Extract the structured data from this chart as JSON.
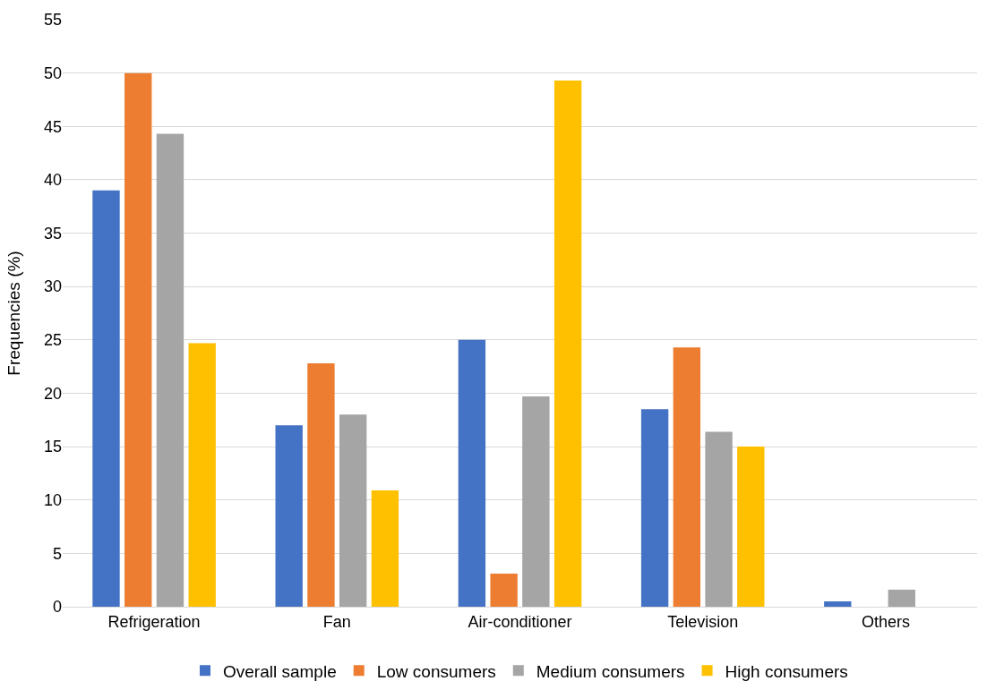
{
  "chart_data": {
    "type": "bar",
    "ylabel": "Frequencies (%)",
    "categories": [
      "Refrigeration",
      "Fan",
      "Air-conditioner",
      "Television",
      "Others"
    ],
    "series": [
      {
        "name": "Overall sample",
        "color": "#4472c4",
        "values": [
          39.0,
          17.0,
          25.0,
          18.5,
          0.5
        ]
      },
      {
        "name": "Low consumers",
        "color": "#ed7d31",
        "values": [
          50.0,
          22.8,
          3.1,
          24.3,
          0
        ]
      },
      {
        "name": "Medium consumers",
        "color": "#a5a5a5",
        "values": [
          44.3,
          18.0,
          19.7,
          16.4,
          1.6
        ]
      },
      {
        "name": "High consumers",
        "color": "#ffc000",
        "values": [
          24.7,
          10.9,
          49.3,
          15.0,
          0
        ]
      }
    ],
    "ylim": [
      0,
      55
    ],
    "yticks": [
      0,
      5,
      10,
      15,
      20,
      25,
      30,
      35,
      40,
      45,
      50,
      55
    ],
    "grid": "y",
    "legend": "bottom"
  }
}
